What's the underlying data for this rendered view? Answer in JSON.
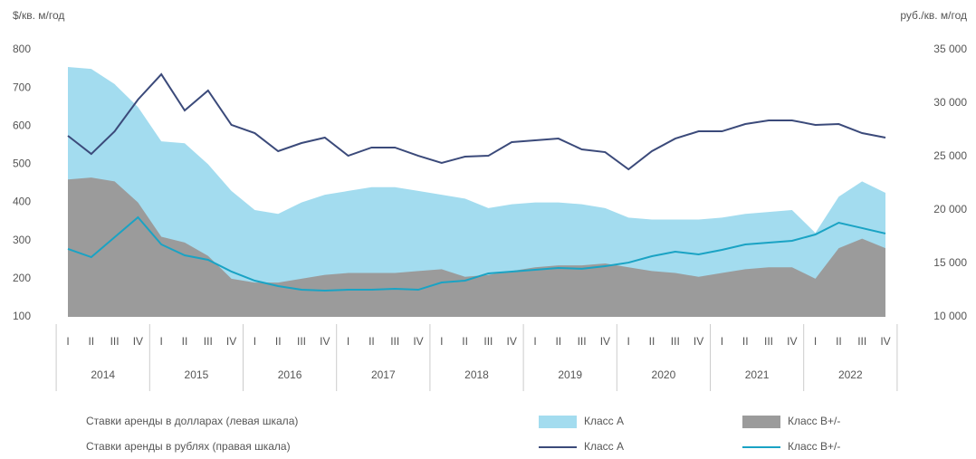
{
  "chart_data": {
    "type": "combo",
    "y_label": "$/кв. м/год",
    "y2_label": "руб./кв. м/год",
    "categories": [
      "I",
      "II",
      "III",
      "IV",
      "I",
      "II",
      "III",
      "IV",
      "I",
      "II",
      "III",
      "IV",
      "I",
      "II",
      "III",
      "IV",
      "I",
      "II",
      "III",
      "IV",
      "I",
      "II",
      "III",
      "IV",
      "I",
      "II",
      "III",
      "IV",
      "I",
      "II",
      "III",
      "IV",
      "I",
      "II",
      "III",
      "IV"
    ],
    "years": [
      "2014",
      "2015",
      "2016",
      "2017",
      "2018",
      "2019",
      "2020",
      "2021",
      "2022"
    ],
    "ylim": [
      100,
      800
    ],
    "yticks": [
      100,
      200,
      300,
      400,
      500,
      600,
      700,
      800
    ],
    "y2lim": [
      10000,
      35000
    ],
    "y2ticks": [
      {
        "value": 10000,
        "label": "10 000"
      },
      {
        "value": 15000,
        "label": "15 000"
      },
      {
        "value": 20000,
        "label": "20 000"
      },
      {
        "value": 25000,
        "label": "25 000"
      },
      {
        "value": 30000,
        "label": "30 000"
      },
      {
        "value": 35000,
        "label": "35 000"
      }
    ],
    "legend_groups": [
      "Ставки аренды в долларах (левая шкала)",
      "Ставки аренды в рублях (правая шкала)"
    ],
    "series": [
      {
        "name": "Класс A",
        "type": "area",
        "axis": "y",
        "color": "#a3dcef",
        "values": [
          755,
          750,
          710,
          650,
          560,
          555,
          500,
          430,
          380,
          370,
          400,
          420,
          430,
          440,
          440,
          430,
          420,
          410,
          385,
          395,
          400,
          400,
          395,
          385,
          360,
          355,
          355,
          355,
          360,
          370,
          375,
          380,
          320,
          415,
          455,
          425
        ]
      },
      {
        "name": "Класс B+/-",
        "type": "area",
        "axis": "y",
        "color": "#9b9b9b",
        "values": [
          460,
          465,
          455,
          400,
          310,
          295,
          260,
          200,
          190,
          190,
          200,
          210,
          215,
          215,
          215,
          220,
          225,
          205,
          210,
          220,
          230,
          235,
          235,
          240,
          230,
          220,
          215,
          205,
          215,
          225,
          230,
          230,
          200,
          280,
          305,
          280
        ]
      },
      {
        "name": "Класс A",
        "type": "line",
        "axis": "y2",
        "color": "#3b4a7a",
        "values": [
          26950,
          25250,
          27370,
          30340,
          32710,
          29320,
          31190,
          27970,
          27200,
          25510,
          26270,
          26780,
          25080,
          25850,
          25850,
          25080,
          24410,
          25000,
          25080,
          26360,
          26530,
          26690,
          25680,
          25420,
          23810,
          25510,
          26690,
          27370,
          27370,
          28050,
          28390,
          28390,
          27970,
          28050,
          27200,
          26780
        ]
      },
      {
        "name": "Класс B+/-",
        "type": "line",
        "axis": "y2",
        "color": "#1aa3c4",
        "values": [
          16360,
          15590,
          17460,
          19320,
          16780,
          15760,
          15340,
          14240,
          13390,
          12880,
          12540,
          12460,
          12540,
          12540,
          12630,
          12540,
          13220,
          13390,
          14070,
          14240,
          14410,
          14580,
          14500,
          14750,
          15080,
          15680,
          16100,
          15850,
          16270,
          16780,
          16950,
          17120,
          17710,
          18810,
          18310,
          17800
        ]
      }
    ]
  }
}
